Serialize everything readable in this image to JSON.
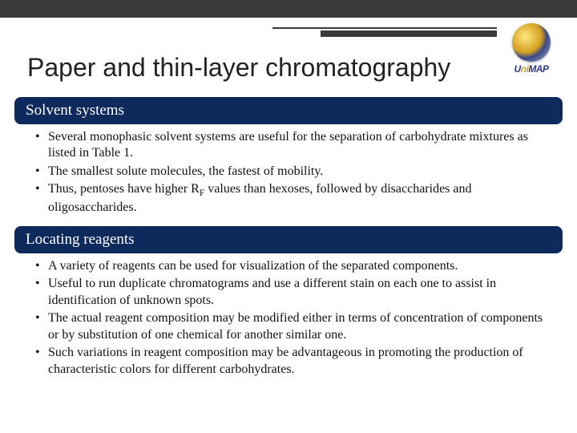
{
  "header": {
    "title": "Paper and thin-layer chromatography",
    "logo_label": "UniMAP",
    "colors": {
      "top_bar": "#3a3a3a",
      "section_bg": "#0e2a5c",
      "section_text": "#ffffff",
      "body_text": "#111111"
    }
  },
  "sections": [
    {
      "heading": "Solvent systems",
      "bullets": [
        "Several monophasic solvent systems are useful for the separation of carbohydrate mixtures as listed in Table 1.",
        "The smallest solute molecules, the fastest of mobility.",
        "Thus, pentoses have higher R_F values than hexoses, followed by disaccharides and oligosaccharides."
      ]
    },
    {
      "heading": "Locating reagents",
      "bullets": [
        "A variety of reagents can be used for visualization of the separated components.",
        "Useful to run duplicate chromatograms and use a different stain on each one to assist in identification of unknown spots.",
        "The actual reagent composition may be modified either in terms of concentration of components or by substitution of one chemical for another similar one.",
        "Such variations in reagent composition may be advantageous in promoting the production of characteristic colors for different carbohydrates."
      ]
    }
  ]
}
